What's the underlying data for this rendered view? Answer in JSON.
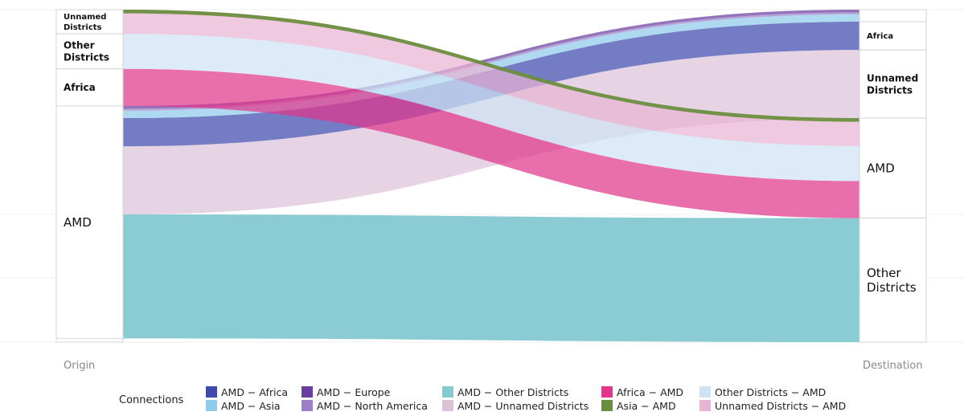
{
  "chart_data": {
    "type": "sankey",
    "axes": {
      "left": "Origin",
      "right": "Destination"
    },
    "origin_nodes": [
      {
        "name": "Unnamed Districts",
        "label_lines": [
          "Unnamed",
          "Districts"
        ]
      },
      {
        "name": "Other Districts",
        "label_lines": [
          "Other",
          "Districts"
        ]
      },
      {
        "name": "Africa",
        "label_lines": [
          "Africa"
        ]
      },
      {
        "name": "AMD",
        "label_lines": [
          "AMD"
        ]
      }
    ],
    "destination_nodes": [
      {
        "name": "Unnamed Districts",
        "label_lines": []
      },
      {
        "name": "Asia",
        "label_lines": []
      },
      {
        "name": "Europe",
        "label_lines": []
      },
      {
        "name": "North America",
        "label_lines": []
      },
      {
        "name": "Africa",
        "label_lines": [
          "Africa"
        ]
      },
      {
        "name": "Unnamed Districts",
        "label_lines": [
          "Unnamed",
          "Districts"
        ]
      },
      {
        "name": "AMD",
        "label_lines": [
          "AMD"
        ]
      },
      {
        "name": "Other Districts",
        "label_lines": [
          "Other",
          "Districts"
        ]
      }
    ],
    "flows": [
      {
        "id": "asia-amd",
        "source": "Asia",
        "target": "AMD",
        "value": 1.2,
        "color": "#6B8E3E"
      },
      {
        "id": "unnamed-amd",
        "source": "Unnamed Districts",
        "target": "AMD",
        "value": 7.8,
        "color": "#E8B4D4"
      },
      {
        "id": "other-amd",
        "source": "Other Districts",
        "target": "AMD",
        "value": 11.3,
        "color": "#CFE3F4"
      },
      {
        "id": "africa-amd",
        "source": "Africa",
        "target": "AMD",
        "value": 12.0,
        "color": "#E0378C"
      },
      {
        "id": "amd-europe",
        "source": "AMD",
        "target": "Europe",
        "value": 0.9,
        "color": "#6A3FA0"
      },
      {
        "id": "amd-northamerica",
        "source": "AMD",
        "target": "North America",
        "value": 0.6,
        "color": "#9B7FC9"
      },
      {
        "id": "amd-asia",
        "source": "AMD",
        "target": "Asia",
        "value": 2.4,
        "color": "#8FCBEB"
      },
      {
        "id": "amd-africa",
        "source": "AMD",
        "target": "Africa",
        "value": 9.1,
        "color": "#3F4AAD"
      },
      {
        "id": "amd-unnamed",
        "source": "AMD",
        "target": "Unnamed Districts",
        "value": 22.0,
        "color": "#DCC2D8"
      },
      {
        "id": "amd-other",
        "source": "AMD",
        "target": "Other Districts",
        "value": 40.0,
        "color": "#85C9D2"
      }
    ],
    "legend": {
      "title": "Connections",
      "items": [
        {
          "label": "AMD − Africa",
          "color": "#3F4AAD"
        },
        {
          "label": "AMD − Asia",
          "color": "#8FCBEB"
        },
        {
          "label": "AMD − Europe",
          "color": "#6A3FA0"
        },
        {
          "label": "AMD − North America",
          "color": "#9B7FC9"
        },
        {
          "label": "AMD − Other Districts",
          "color": "#85C9D2"
        },
        {
          "label": "AMD − Unnamed Districts",
          "color": "#DCC2D8"
        },
        {
          "label": "Africa − AMD",
          "color": "#E0378C"
        },
        {
          "label": "Asia − AMD",
          "color": "#6B8E3E"
        },
        {
          "label": "Other Districts − AMD",
          "color": "#CFE3F4"
        },
        {
          "label": "Unnamed Districts − AMD",
          "color": "#E8B4D4"
        }
      ]
    }
  }
}
